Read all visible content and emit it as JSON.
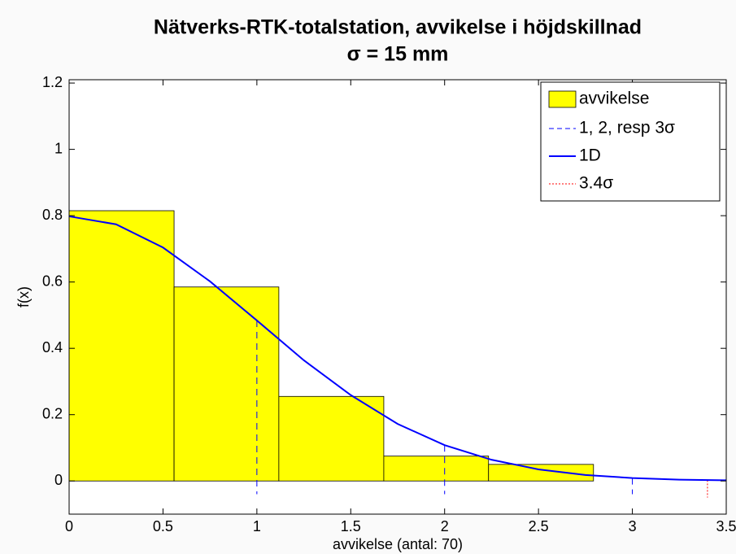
{
  "chart_data": {
    "type": "histogram",
    "title": "Nätverks-RTK-totalstation, avvikelse i höjdskillnad",
    "subtitle": "σ = 15 mm",
    "xlabel": "avvikelse (antal: 70)",
    "ylabel": "f(x)",
    "bins": [
      0,
      0.559,
      1.117,
      1.676,
      2.234,
      2.793
    ],
    "counts": [
      0.815,
      0.585,
      0.255,
      0.075,
      0.05
    ],
    "bar_name": "avvikelse",
    "bar_color": "#ffff00",
    "lines": [
      {
        "name": "1D",
        "color": "#0000ff",
        "x": [
          0,
          0.25,
          0.5,
          0.75,
          1,
          1.25,
          1.5,
          1.75,
          2,
          2.25,
          2.5,
          2.75,
          3,
          3.25,
          3.5
        ],
        "values": [
          0.798,
          0.774,
          0.704,
          0.602,
          0.484,
          0.364,
          0.259,
          0.172,
          0.108,
          0.064,
          0.035,
          0.018,
          0.009,
          0.004,
          0.002
        ]
      }
    ],
    "vlines": [
      {
        "name": "1, 2, resp 3σ",
        "color": "#0000ff",
        "style": "dashed",
        "x": [
          1,
          2,
          3
        ],
        "top": [
          0.484,
          0.108,
          0.009
        ],
        "bottom": [
          -0.04,
          -0.04,
          -0.04
        ]
      },
      {
        "name": "3.4σ",
        "color": "#ff0000",
        "style": "dotted",
        "x": [
          3.4
        ],
        "top": [
          0.002
        ],
        "bottom": [
          -0.05
        ]
      }
    ],
    "xlim": [
      0,
      3.5
    ],
    "ylim": [
      -0.1,
      1.21
    ],
    "xticks": [
      0,
      0.5,
      1,
      1.5,
      2,
      2.5,
      3,
      3.5
    ],
    "yticks": [
      0,
      0.2,
      0.4,
      0.6,
      0.8,
      1,
      1.2
    ],
    "legend": "upper right"
  }
}
